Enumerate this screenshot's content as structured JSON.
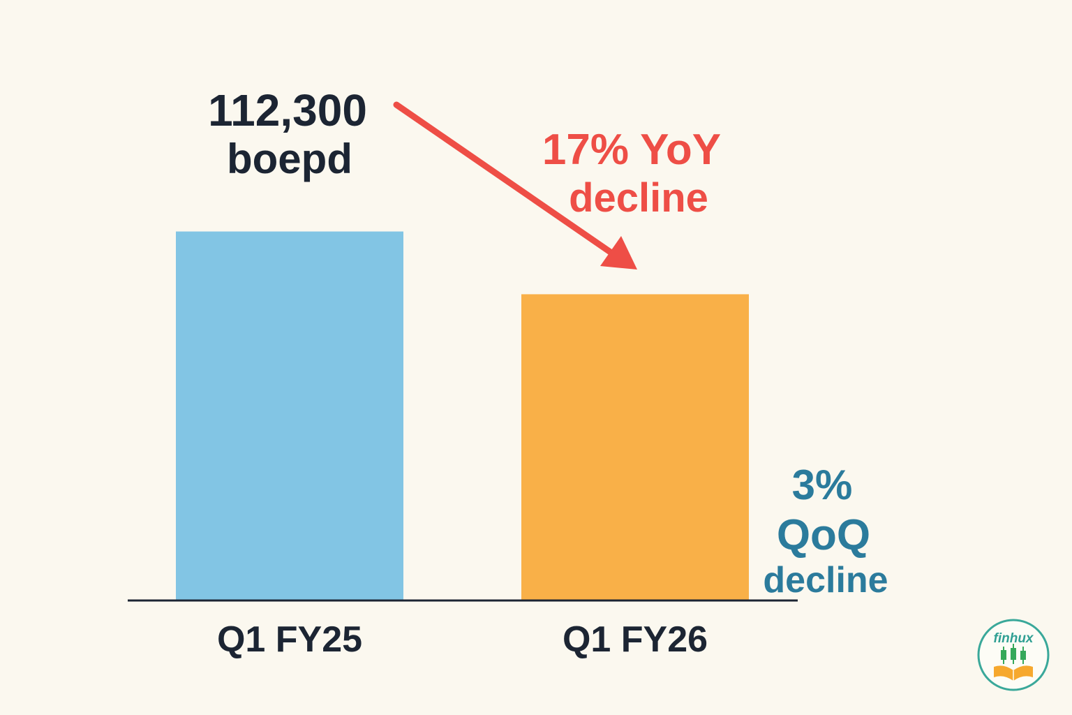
{
  "chart_data": {
    "type": "bar",
    "categories": [
      "Q1 FY25",
      "Q1 FY26"
    ],
    "values": [
      112300,
      93200
    ],
    "unit": "boepd",
    "ylim": [
      0,
      170000
    ],
    "grid": false,
    "legend": "none",
    "colors": [
      "#82c5e4",
      "#f9b048"
    ],
    "data_labels": [
      {
        "value": "112,300",
        "unit": "boepd"
      }
    ],
    "annotations": [
      {
        "line1": "17% YoY",
        "line2": "decline",
        "color": "#ee4e46"
      },
      {
        "line1": "3%",
        "line2": "QoQ",
        "line3": "decline",
        "color": "#2b7b9c"
      }
    ]
  },
  "logo": {
    "text": "finhux",
    "icon": "candlestick-book-icon"
  },
  "colors": {
    "background": "#fbf8ef",
    "text": "#1c2533",
    "axis": "#1c2533",
    "arrow": "#ee4e46"
  }
}
